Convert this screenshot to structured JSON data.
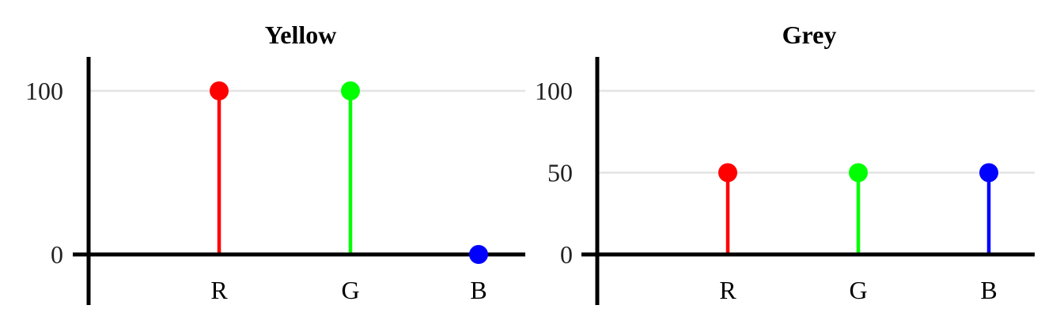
{
  "chart_data": [
    {
      "type": "lollipop",
      "title": "Yellow",
      "categories": [
        "R",
        "G",
        "B"
      ],
      "values": [
        100,
        100,
        0
      ],
      "point_colors": [
        "#ff0000",
        "#00ff00",
        "#0000ff"
      ],
      "ylim": [
        0,
        100
      ],
      "yticks": [
        "0",
        "100"
      ],
      "grid": true,
      "legend": "none"
    },
    {
      "type": "lollipop",
      "title": "Grey",
      "categories": [
        "R",
        "G",
        "B"
      ],
      "values": [
        50,
        50,
        50
      ],
      "point_colors": [
        "#ff0000",
        "#00ff00",
        "#0000ff"
      ],
      "ylim": [
        0,
        100
      ],
      "yticks": [
        "0",
        "50",
        "100"
      ],
      "grid": true,
      "legend": "none"
    }
  ]
}
